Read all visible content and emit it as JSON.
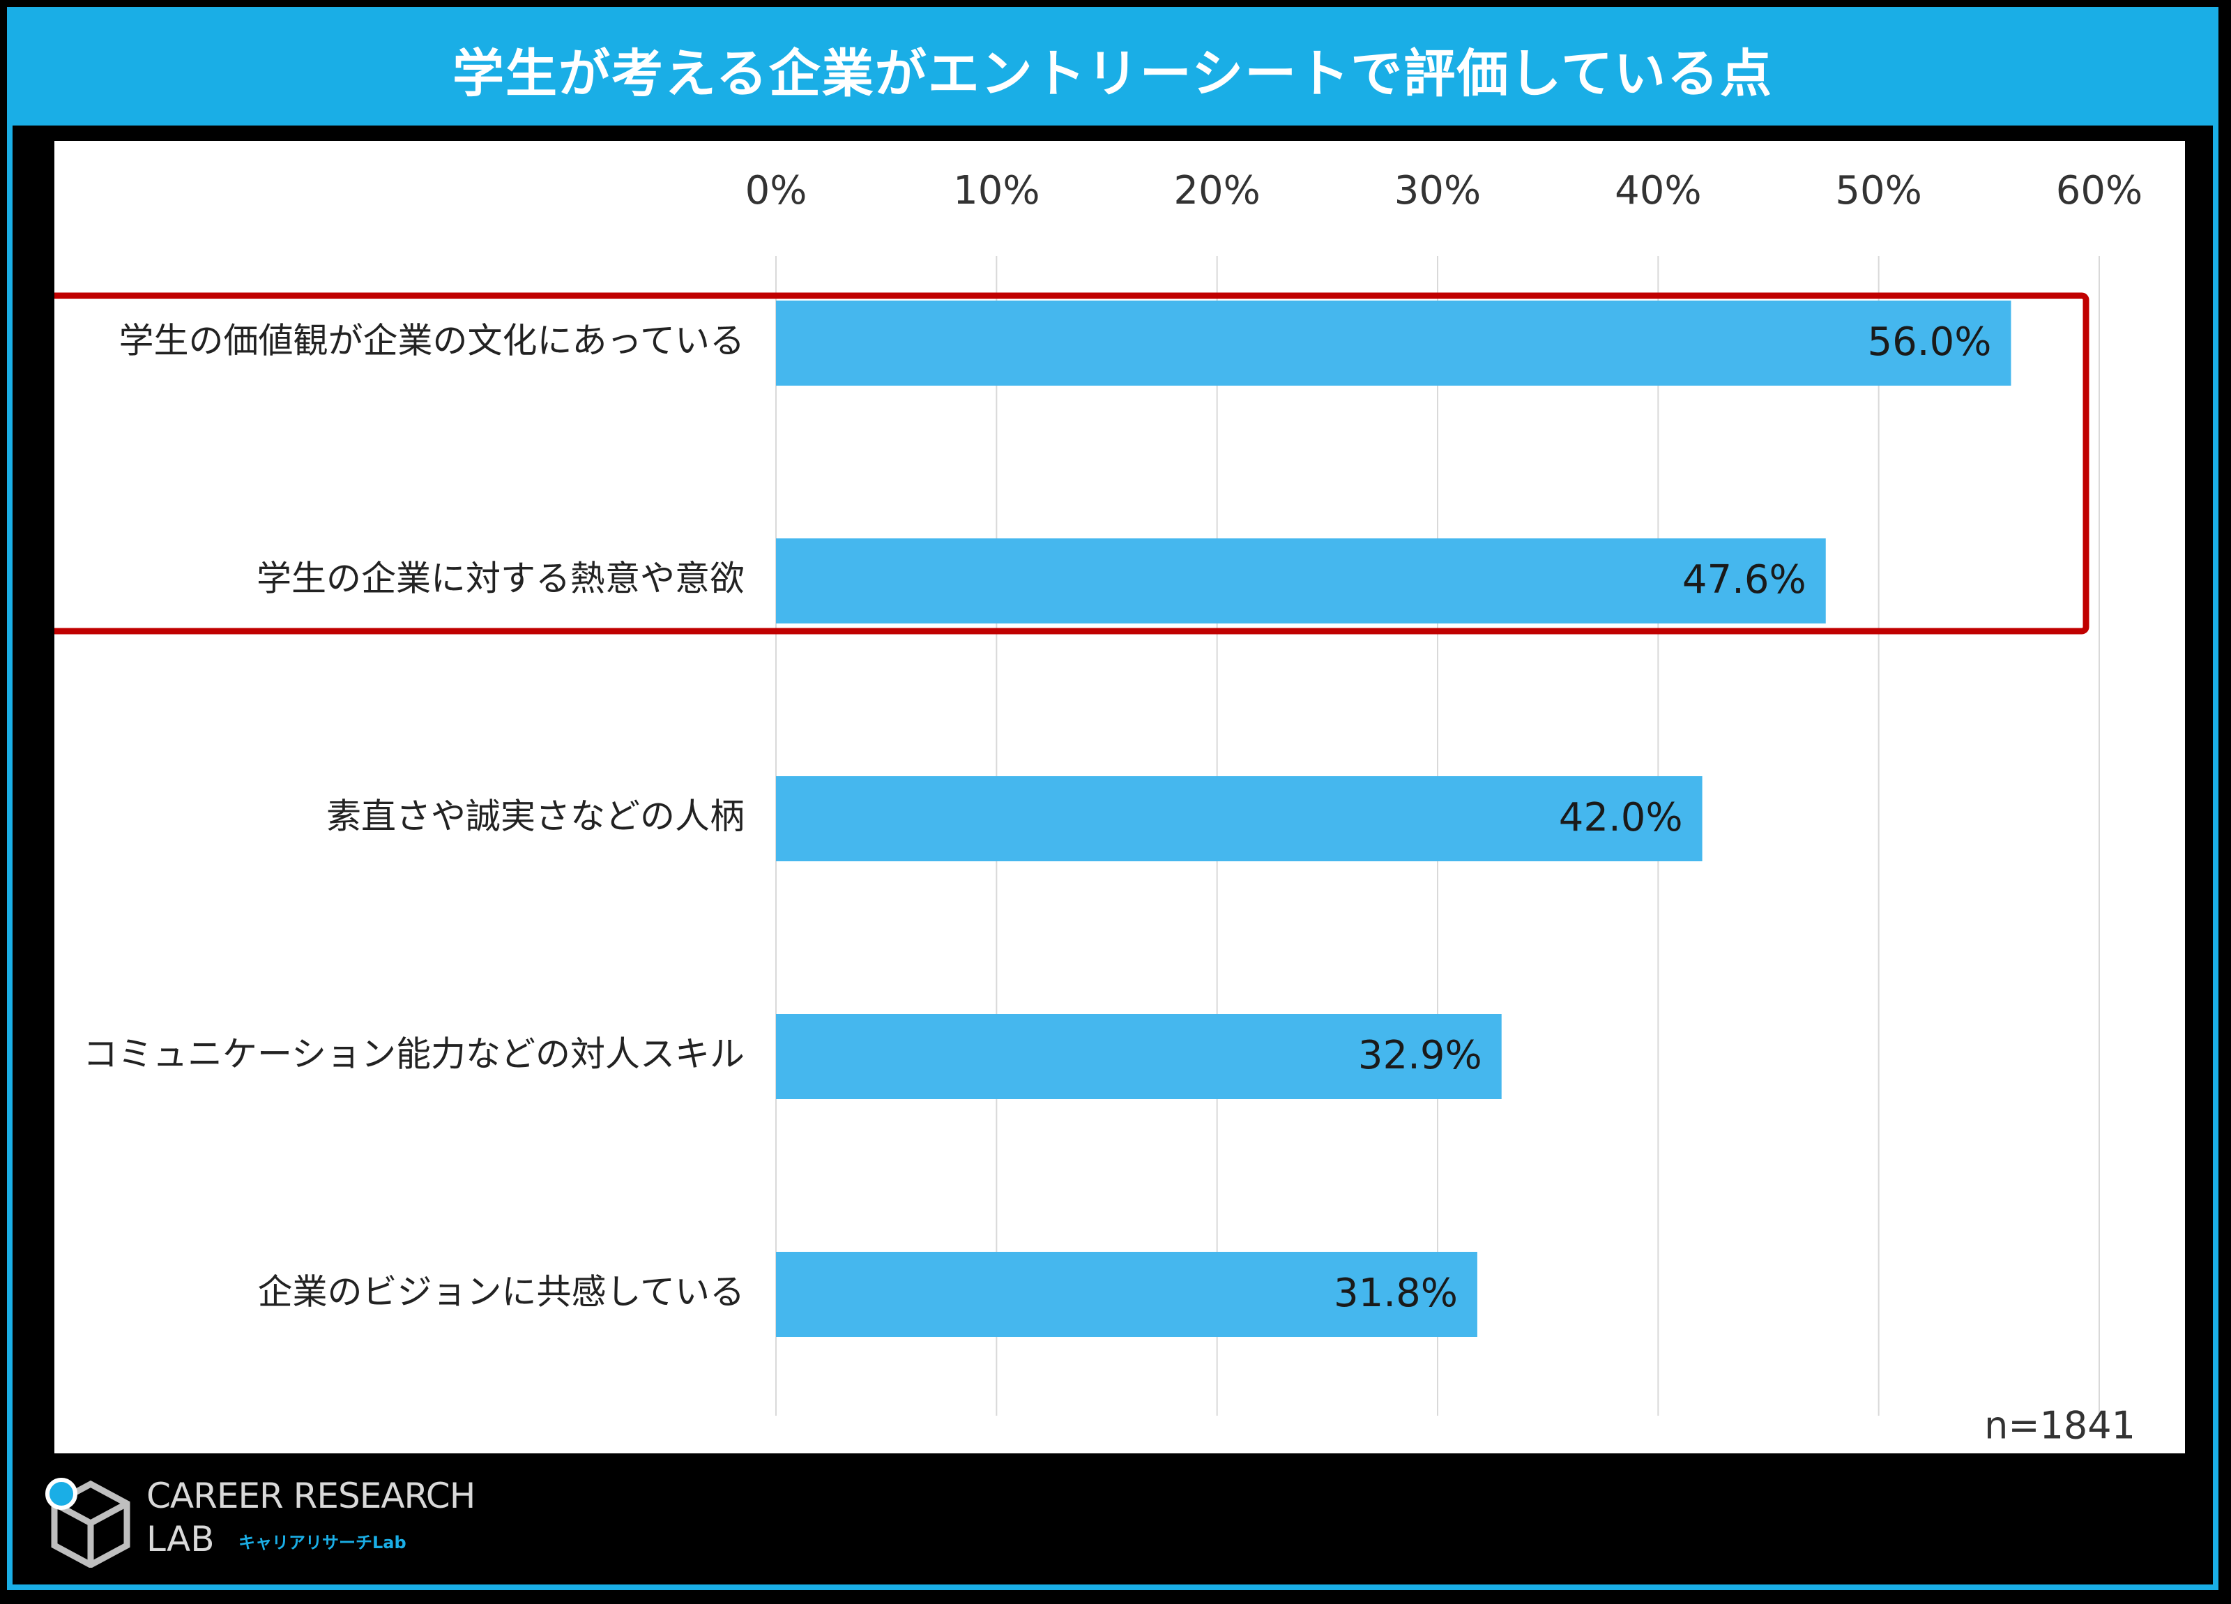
{
  "title": "学生が考える企業がエントリーシートで評価している点",
  "chart_data": {
    "type": "bar",
    "orientation": "horizontal",
    "categories": [
      "学生の価値観が企業の文化にあっている",
      "学生の企業に対する熱意や意欲",
      "素直さや誠実さなどの人柄",
      "コミュニケーション能力などの対人スキル",
      "企業のビジョンに共感している"
    ],
    "values": [
      56.0,
      47.6,
      42.0,
      32.9,
      31.8
    ],
    "value_labels": [
      "56.0%",
      "47.6%",
      "42.0%",
      "32.9%",
      "31.8%"
    ],
    "xlim": [
      0,
      60
    ],
    "ticks": [
      0,
      10,
      20,
      30,
      40,
      50,
      60
    ],
    "tick_labels": [
      "0%",
      "10%",
      "20%",
      "30%",
      "40%",
      "50%",
      "60%"
    ],
    "axis_position": "top",
    "grid": true,
    "bar_color": "#45b7ee",
    "highlight_color": "#c00000",
    "highlight_categories": [
      0,
      1
    ],
    "note": "n=1841"
  },
  "logo": {
    "main": "CAREER RESEARCH",
    "sub": "LAB",
    "kana": "キャリアリサーチLab",
    "icon": "cube-magnifier-icon"
  }
}
